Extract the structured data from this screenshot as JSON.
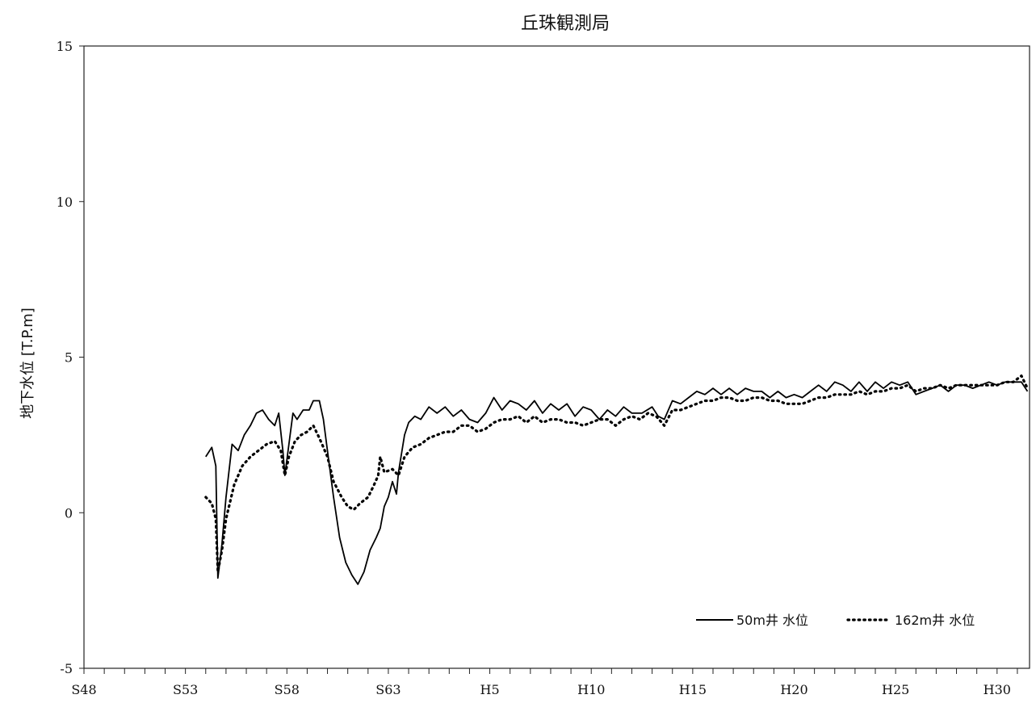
{
  "chart_data": {
    "type": "line",
    "title": "丘珠観測局",
    "xlabel": "",
    "ylabel": "地下水位 [T.P.m]",
    "ylim": [
      -5,
      15
    ],
    "yticks": [
      "15",
      "10",
      "5",
      "0",
      "-5"
    ],
    "xlim": [
      1973.0,
      2019.6
    ],
    "xticks": [
      {
        "label": "S48",
        "year": 1973
      },
      {
        "label": "S53",
        "year": 1978
      },
      {
        "label": "S58",
        "year": 1983
      },
      {
        "label": "S63",
        "year": 1988
      },
      {
        "label": "H5",
        "year": 1993
      },
      {
        "label": "H10",
        "year": 1998
      },
      {
        "label": "H15",
        "year": 2003
      },
      {
        "label": "H20",
        "year": 2008
      },
      {
        "label": "H25",
        "year": 2013
      },
      {
        "label": "H30",
        "year": 2018
      }
    ],
    "grid": false,
    "legend_position": "bottom-right",
    "series": [
      {
        "name": "50m井 水位",
        "style": "solid",
        "color": "#000000",
        "points": [
          [
            1979.0,
            1.8
          ],
          [
            1979.3,
            2.1
          ],
          [
            1979.5,
            1.5
          ],
          [
            1979.6,
            -2.1
          ],
          [
            1979.8,
            -1.0
          ],
          [
            1980.0,
            0.5
          ],
          [
            1980.3,
            2.2
          ],
          [
            1980.6,
            2.0
          ],
          [
            1980.9,
            2.5
          ],
          [
            1981.2,
            2.8
          ],
          [
            1981.5,
            3.2
          ],
          [
            1981.8,
            3.3
          ],
          [
            1982.1,
            3.0
          ],
          [
            1982.4,
            2.8
          ],
          [
            1982.6,
            3.2
          ],
          [
            1982.8,
            2.0
          ],
          [
            1982.9,
            1.2
          ],
          [
            1983.1,
            2.2
          ],
          [
            1983.3,
            3.2
          ],
          [
            1983.5,
            3.0
          ],
          [
            1983.8,
            3.3
          ],
          [
            1984.1,
            3.3
          ],
          [
            1984.3,
            3.6
          ],
          [
            1984.6,
            3.6
          ],
          [
            1984.8,
            3.0
          ],
          [
            1985.0,
            2.0
          ],
          [
            1985.3,
            0.5
          ],
          [
            1985.6,
            -0.8
          ],
          [
            1985.9,
            -1.6
          ],
          [
            1986.2,
            -2.0
          ],
          [
            1986.5,
            -2.3
          ],
          [
            1986.8,
            -1.9
          ],
          [
            1987.1,
            -1.2
          ],
          [
            1987.4,
            -0.8
          ],
          [
            1987.6,
            -0.5
          ],
          [
            1987.8,
            0.2
          ],
          [
            1988.0,
            0.5
          ],
          [
            1988.2,
            1.0
          ],
          [
            1988.4,
            0.6
          ],
          [
            1988.5,
            1.3
          ],
          [
            1988.8,
            2.5
          ],
          [
            1989.0,
            2.9
          ],
          [
            1989.3,
            3.1
          ],
          [
            1989.6,
            3.0
          ],
          [
            1990.0,
            3.4
          ],
          [
            1990.4,
            3.2
          ],
          [
            1990.8,
            3.4
          ],
          [
            1991.2,
            3.1
          ],
          [
            1991.6,
            3.3
          ],
          [
            1992.0,
            3.0
          ],
          [
            1992.4,
            2.9
          ],
          [
            1992.8,
            3.2
          ],
          [
            1993.2,
            3.7
          ],
          [
            1993.6,
            3.3
          ],
          [
            1994.0,
            3.6
          ],
          [
            1994.4,
            3.5
          ],
          [
            1994.8,
            3.3
          ],
          [
            1995.2,
            3.6
          ],
          [
            1995.6,
            3.2
          ],
          [
            1996.0,
            3.5
          ],
          [
            1996.4,
            3.3
          ],
          [
            1996.8,
            3.5
          ],
          [
            1997.2,
            3.1
          ],
          [
            1997.6,
            3.4
          ],
          [
            1998.0,
            3.3
          ],
          [
            1998.4,
            3.0
          ],
          [
            1998.8,
            3.3
          ],
          [
            1999.2,
            3.1
          ],
          [
            1999.6,
            3.4
          ],
          [
            2000.0,
            3.2
          ],
          [
            2000.5,
            3.2
          ],
          [
            2001.0,
            3.4
          ],
          [
            2001.3,
            3.1
          ],
          [
            2001.6,
            3.0
          ],
          [
            2002.0,
            3.6
          ],
          [
            2002.4,
            3.5
          ],
          [
            2002.8,
            3.7
          ],
          [
            2003.2,
            3.9
          ],
          [
            2003.6,
            3.8
          ],
          [
            2004.0,
            4.0
          ],
          [
            2004.4,
            3.8
          ],
          [
            2004.8,
            4.0
          ],
          [
            2005.2,
            3.8
          ],
          [
            2005.6,
            4.0
          ],
          [
            2006.0,
            3.9
          ],
          [
            2006.4,
            3.9
          ],
          [
            2006.8,
            3.7
          ],
          [
            2007.2,
            3.9
          ],
          [
            2007.6,
            3.7
          ],
          [
            2008.0,
            3.8
          ],
          [
            2008.4,
            3.7
          ],
          [
            2008.8,
            3.9
          ],
          [
            2009.2,
            4.1
          ],
          [
            2009.6,
            3.9
          ],
          [
            2010.0,
            4.2
          ],
          [
            2010.4,
            4.1
          ],
          [
            2010.8,
            3.9
          ],
          [
            2011.2,
            4.2
          ],
          [
            2011.6,
            3.9
          ],
          [
            2012.0,
            4.2
          ],
          [
            2012.4,
            4.0
          ],
          [
            2012.8,
            4.2
          ],
          [
            2013.2,
            4.1
          ],
          [
            2013.6,
            4.2
          ],
          [
            2014.0,
            3.8
          ],
          [
            2014.4,
            3.9
          ],
          [
            2014.8,
            4.0
          ],
          [
            2015.2,
            4.1
          ],
          [
            2015.6,
            3.9
          ],
          [
            2016.0,
            4.1
          ],
          [
            2016.4,
            4.1
          ],
          [
            2016.8,
            4.0
          ],
          [
            2017.2,
            4.1
          ],
          [
            2017.6,
            4.2
          ],
          [
            2018.0,
            4.1
          ],
          [
            2018.4,
            4.2
          ],
          [
            2018.8,
            4.2
          ],
          [
            2019.2,
            4.2
          ],
          [
            2019.5,
            3.9
          ]
        ]
      },
      {
        "name": "162m井 水位",
        "style": "dotted",
        "color": "#000000",
        "points": [
          [
            1979.0,
            0.5
          ],
          [
            1979.3,
            0.3
          ],
          [
            1979.5,
            -0.2
          ],
          [
            1979.6,
            -1.9
          ],
          [
            1979.8,
            -1.2
          ],
          [
            1980.0,
            -0.2
          ],
          [
            1980.4,
            0.9
          ],
          [
            1980.8,
            1.5
          ],
          [
            1981.2,
            1.8
          ],
          [
            1981.6,
            2.0
          ],
          [
            1982.0,
            2.2
          ],
          [
            1982.4,
            2.3
          ],
          [
            1982.7,
            2.0
          ],
          [
            1982.9,
            1.2
          ],
          [
            1983.1,
            1.8
          ],
          [
            1983.4,
            2.3
          ],
          [
            1983.7,
            2.5
          ],
          [
            1984.0,
            2.6
          ],
          [
            1984.3,
            2.8
          ],
          [
            1984.6,
            2.4
          ],
          [
            1985.0,
            1.8
          ],
          [
            1985.3,
            1.0
          ],
          [
            1985.7,
            0.5
          ],
          [
            1986.0,
            0.2
          ],
          [
            1986.3,
            0.1
          ],
          [
            1986.6,
            0.3
          ],
          [
            1987.0,
            0.5
          ],
          [
            1987.3,
            0.9
          ],
          [
            1987.5,
            1.2
          ],
          [
            1987.6,
            1.8
          ],
          [
            1987.8,
            1.3
          ],
          [
            1988.2,
            1.4
          ],
          [
            1988.5,
            1.2
          ],
          [
            1988.8,
            1.8
          ],
          [
            1989.2,
            2.1
          ],
          [
            1989.6,
            2.2
          ],
          [
            1990.0,
            2.4
          ],
          [
            1990.4,
            2.5
          ],
          [
            1990.8,
            2.6
          ],
          [
            1991.2,
            2.6
          ],
          [
            1991.6,
            2.8
          ],
          [
            1992.0,
            2.8
          ],
          [
            1992.4,
            2.6
          ],
          [
            1992.8,
            2.7
          ],
          [
            1993.2,
            2.9
          ],
          [
            1993.6,
            3.0
          ],
          [
            1994.0,
            3.0
          ],
          [
            1994.4,
            3.1
          ],
          [
            1994.8,
            2.9
          ],
          [
            1995.2,
            3.1
          ],
          [
            1995.6,
            2.9
          ],
          [
            1996.0,
            3.0
          ],
          [
            1996.4,
            3.0
          ],
          [
            1996.8,
            2.9
          ],
          [
            1997.2,
            2.9
          ],
          [
            1997.6,
            2.8
          ],
          [
            1998.0,
            2.9
          ],
          [
            1998.4,
            3.0
          ],
          [
            1998.8,
            3.0
          ],
          [
            1999.2,
            2.8
          ],
          [
            1999.6,
            3.0
          ],
          [
            2000.0,
            3.1
          ],
          [
            2000.4,
            3.0
          ],
          [
            2000.8,
            3.2
          ],
          [
            2001.2,
            3.1
          ],
          [
            2001.6,
            2.8
          ],
          [
            2002.0,
            3.3
          ],
          [
            2002.4,
            3.3
          ],
          [
            2002.8,
            3.4
          ],
          [
            2003.2,
            3.5
          ],
          [
            2003.6,
            3.6
          ],
          [
            2004.0,
            3.6
          ],
          [
            2004.4,
            3.7
          ],
          [
            2004.8,
            3.7
          ],
          [
            2005.2,
            3.6
          ],
          [
            2005.6,
            3.6
          ],
          [
            2006.0,
            3.7
          ],
          [
            2006.4,
            3.7
          ],
          [
            2006.8,
            3.6
          ],
          [
            2007.2,
            3.6
          ],
          [
            2007.6,
            3.5
          ],
          [
            2008.0,
            3.5
          ],
          [
            2008.4,
            3.5
          ],
          [
            2008.8,
            3.6
          ],
          [
            2009.2,
            3.7
          ],
          [
            2009.6,
            3.7
          ],
          [
            2010.0,
            3.8
          ],
          [
            2010.4,
            3.8
          ],
          [
            2010.8,
            3.8
          ],
          [
            2011.2,
            3.9
          ],
          [
            2011.6,
            3.8
          ],
          [
            2012.0,
            3.9
          ],
          [
            2012.4,
            3.9
          ],
          [
            2012.8,
            4.0
          ],
          [
            2013.2,
            4.0
          ],
          [
            2013.6,
            4.1
          ],
          [
            2014.0,
            3.9
          ],
          [
            2014.4,
            4.0
          ],
          [
            2014.8,
            4.0
          ],
          [
            2015.2,
            4.1
          ],
          [
            2015.6,
            4.0
          ],
          [
            2016.0,
            4.1
          ],
          [
            2016.4,
            4.1
          ],
          [
            2016.8,
            4.1
          ],
          [
            2017.2,
            4.1
          ],
          [
            2017.6,
            4.1
          ],
          [
            2018.0,
            4.1
          ],
          [
            2018.4,
            4.2
          ],
          [
            2018.8,
            4.2
          ],
          [
            2019.2,
            4.4
          ],
          [
            2019.5,
            4.0
          ]
        ]
      }
    ]
  }
}
